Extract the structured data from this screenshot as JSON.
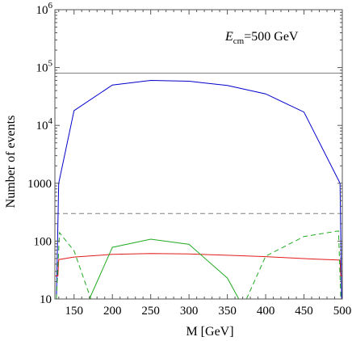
{
  "chart_data": {
    "type": "line",
    "xlabel": "M [GeV]",
    "ylabel": "Number of events",
    "xlim": [
      125,
      500
    ],
    "ylim": [
      10,
      1000000
    ],
    "yscale": "log",
    "grid": false,
    "annotation": {
      "symbol": "E",
      "subscript": "cm",
      "text": "=500 GeV"
    },
    "x_ticks": [
      150,
      200,
      250,
      300,
      350,
      400,
      450,
      500
    ],
    "x_tick_labels": [
      "150",
      "200",
      "250",
      "300",
      "350",
      "400",
      "450",
      "500"
    ],
    "y_ticks": [
      10,
      100,
      1000,
      10000,
      100000,
      1000000
    ],
    "y_tick_labels": [
      {
        "base": "10",
        "exp": ""
      },
      {
        "base": "100",
        "exp": ""
      },
      {
        "base": "1000",
        "exp": ""
      },
      {
        "base": "10",
        "exp": "4"
      },
      {
        "base": "10",
        "exp": "5"
      },
      {
        "base": "10",
        "exp": "6"
      }
    ],
    "series": [
      {
        "color": "#808080",
        "dash": "solid",
        "x": [
          125,
          500
        ],
        "y": [
          80000,
          80000
        ]
      },
      {
        "color": "#808080",
        "dash": "dashed",
        "x": [
          125,
          500
        ],
        "y": [
          300,
          300
        ]
      },
      {
        "color": "#0000cc",
        "dash": "solid",
        "x": [
          127,
          130,
          150,
          200,
          250,
          300,
          350,
          400,
          450,
          497,
          499
        ],
        "y": [
          10,
          1000,
          18000,
          50000,
          60000,
          58000,
          49000,
          35000,
          17000,
          1000,
          10
        ]
      },
      {
        "color": "#e31a1c",
        "dash": "solid",
        "x": [
          125,
          129,
          130,
          150,
          200,
          250,
          300,
          350,
          400,
          450,
          497,
          498,
          500
        ],
        "y": [
          25,
          25,
          48,
          53,
          59,
          61,
          60,
          57,
          54,
          50,
          47,
          25,
          25
        ]
      },
      {
        "color": "#22aa22",
        "dash": "solid",
        "x": [
          170,
          200,
          250,
          300,
          350,
          365
        ],
        "y": [
          10,
          78,
          108,
          88,
          23,
          10
        ]
      },
      {
        "color": "#22aa22",
        "dash": "dashed",
        "x": [
          127,
          131,
          150,
          172
        ],
        "y": [
          10,
          140,
          68,
          10
        ]
      },
      {
        "color": "#22aa22",
        "dash": "dashed",
        "x": [
          375,
          400,
          450,
          495,
          498
        ],
        "y": [
          10,
          55,
          120,
          150,
          10
        ]
      }
    ]
  }
}
